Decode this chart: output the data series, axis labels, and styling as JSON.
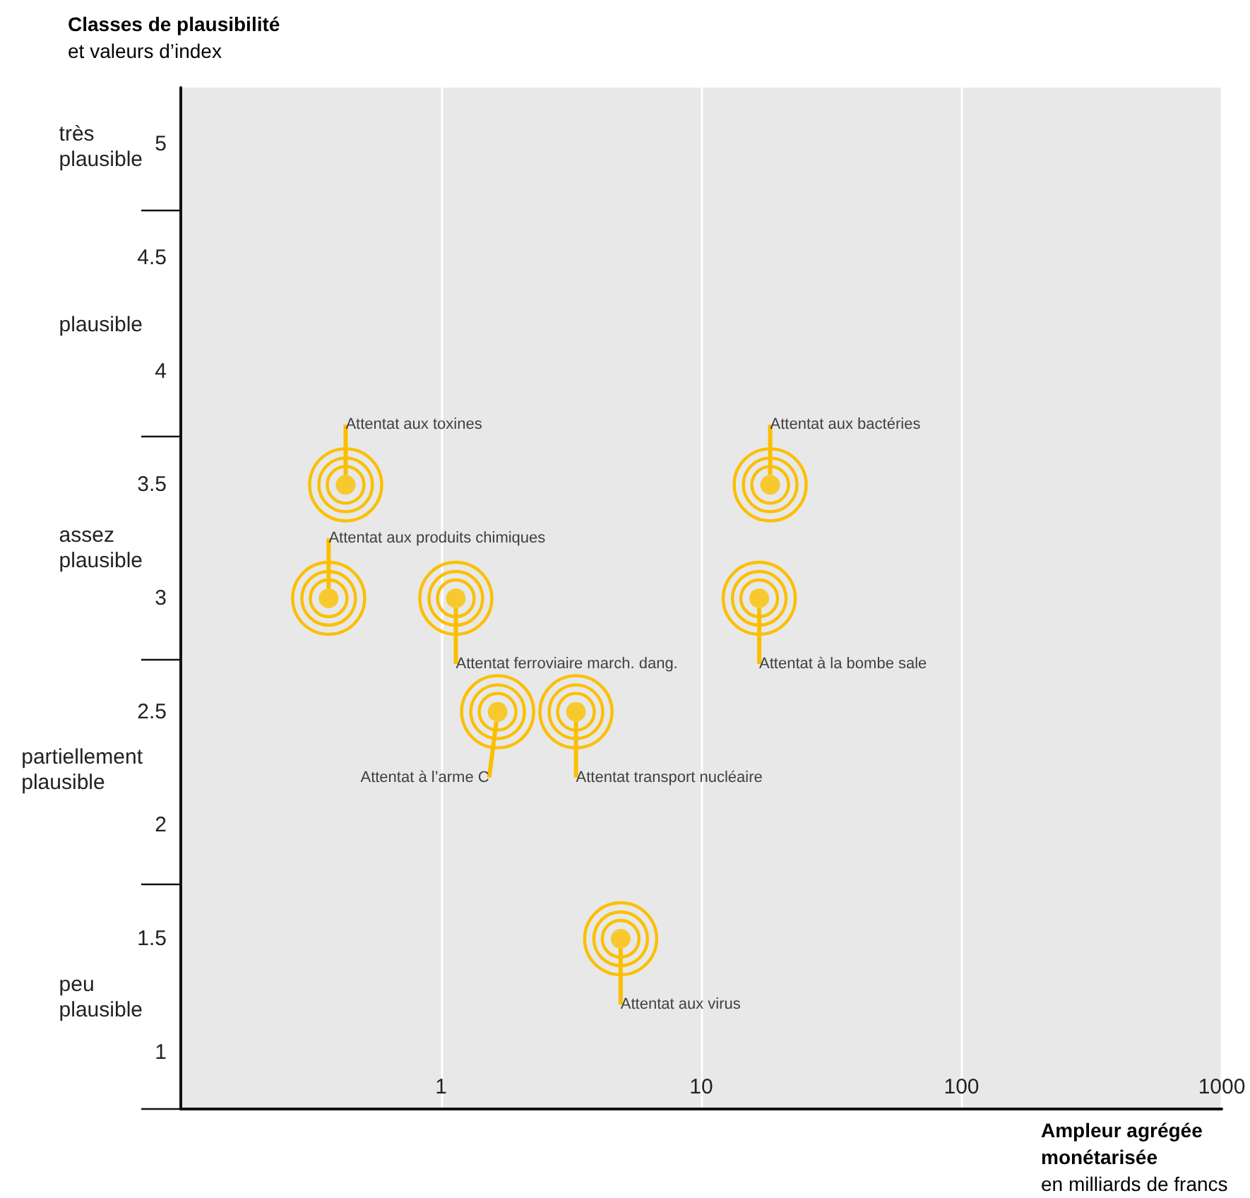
{
  "chart_data": {
    "type": "scatter",
    "xlabel": "Ampleur agrégée\nmonétarisée\nen milliards de francs",
    "ylabel": "Classes de plausibilité\net valeurs d’index",
    "series": [
      {
        "name": "Attentat aux toxines",
        "color": "#fbbf00",
        "x": [
          0.43
        ],
        "values": [
          3.5
        ]
      },
      {
        "name": "Attentat aux bactéries",
        "color": "#fbbf00",
        "x": [
          18.4
        ],
        "values": [
          3.5
        ]
      },
      {
        "name": "Attentat aux produits chimiques",
        "color": "#fbbf00",
        "x": [
          0.37
        ],
        "values": [
          3
        ]
      },
      {
        "name": "Attentat ferroviaire march. dang.",
        "color": "#fbbf00",
        "x": [
          1.14
        ],
        "values": [
          3
        ]
      },
      {
        "name": "Attentat à la bombe sale",
        "color": "#fbbf00",
        "x": [
          16.7
        ],
        "values": [
          3
        ]
      },
      {
        "name": "Attentat à l’arme C",
        "color": "#fbbf00",
        "x": [
          1.65
        ],
        "values": [
          2.5
        ]
      },
      {
        "name": "Attentat transport nucléaire",
        "color": "#fbbf00",
        "x": [
          3.3
        ],
        "values": [
          2.5
        ]
      },
      {
        "name": "Attentat aux virus",
        "color": "#fbbf00",
        "x": [
          4.9
        ],
        "values": [
          1.5
        ]
      }
    ],
    "marker": "circle",
    "log": "x",
    "grid": "x",
    "legend": false,
    "xlim": [
      0.1,
      1000
    ],
    "xticks": [
      1,
      10,
      100,
      1000
    ],
    "ylim": [
      0.75,
      5.25
    ],
    "yticks": [
      1,
      1.5,
      2,
      2.5,
      3,
      3.5,
      4,
      4.5,
      5
    ],
    "annotations": [
      "très\nplausible",
      "plausible",
      "assez\nplausible",
      "partiellement\nplausible",
      "peu\nplausible"
    ]
  }
}
